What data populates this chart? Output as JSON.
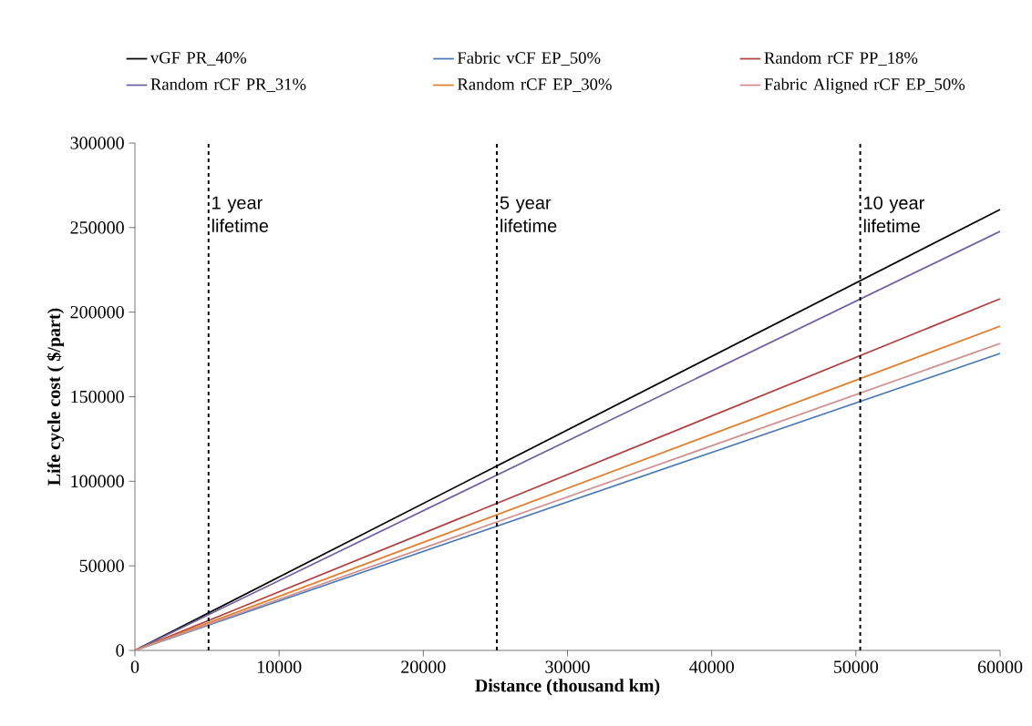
{
  "chart_data": {
    "type": "line",
    "xlabel": "Distance (thousand km)",
    "ylabel": "Life cycle cost ( $/part)",
    "x": [
      0,
      60000
    ],
    "series": [
      {
        "name": "vGF PR_40%",
        "color": "#000000",
        "values": [
          0,
          260700
        ]
      },
      {
        "name": "Fabric vCF EP_50%",
        "color": "#4a7ab5",
        "values": [
          0,
          175600
        ]
      },
      {
        "name": "Random rCF PP_18%",
        "color": "#b04040",
        "values": [
          0,
          207900
        ]
      },
      {
        "name": "Random rCF PR_31%",
        "color": "#7060a0",
        "values": [
          0,
          247800
        ]
      },
      {
        "name": "Random rCF EP_30%",
        "color": "#e08030",
        "values": [
          0,
          191700
        ]
      },
      {
        "name": "Fabric Aligned  rCF EP_50%",
        "color": "#d09090",
        "values": [
          0,
          181500
        ]
      }
    ],
    "xlim": [
      0,
      60000
    ],
    "ylim": [
      0,
      300000
    ],
    "xticks": [
      0,
      10000,
      20000,
      30000,
      40000,
      50000,
      60000
    ],
    "yticks": [
      0,
      50000,
      100000,
      150000,
      200000,
      250000,
      300000
    ],
    "ref_lines": [
      {
        "axis": "x",
        "value": 5100,
        "label": "1 year lifetime",
        "color": "#000000",
        "line_style": "dashed"
      },
      {
        "axis": "x",
        "value": 25100,
        "label": "5 year lifetime",
        "color": "#000000",
        "line_style": "dashed"
      },
      {
        "axis": "x",
        "value": 50300,
        "label": "10 year lifetime",
        "color": "#000000",
        "line_style": "dashed"
      }
    ],
    "legend": "top",
    "grid": false,
    "marker": "none",
    "line_style": "solid"
  }
}
